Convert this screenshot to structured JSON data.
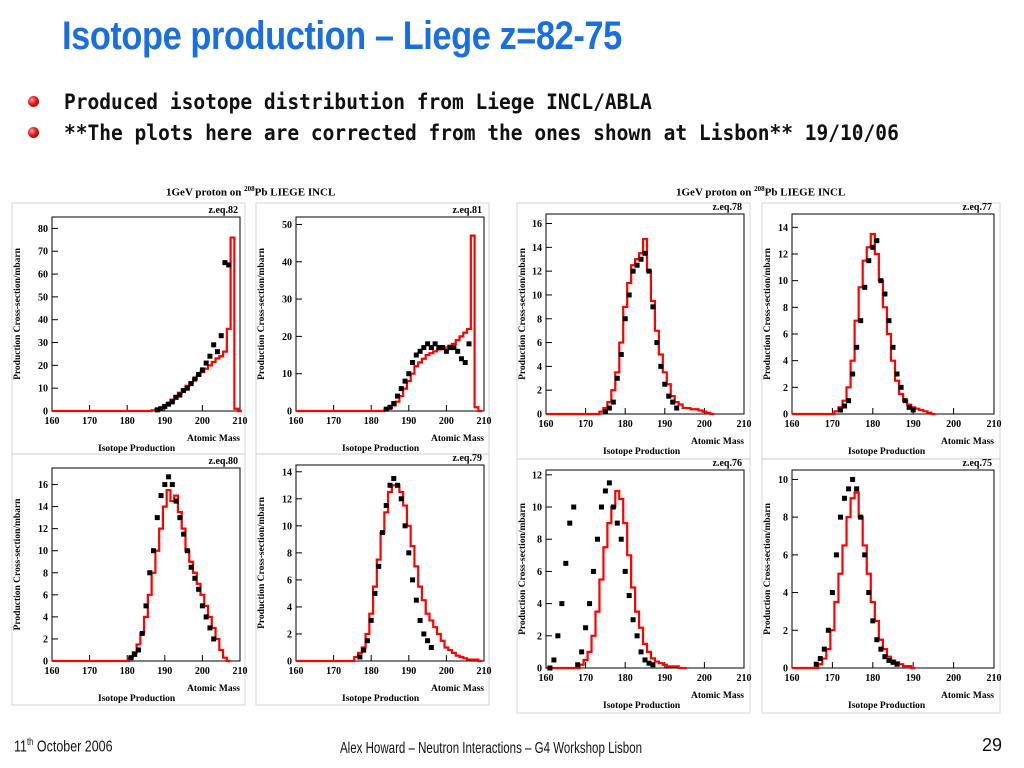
{
  "slide": {
    "title": "Isotope production – Liege z=82-75",
    "bullets": [
      "Produced isotope distribution from Liege INCL/ABLA",
      "**The plots here are corrected from the ones shown at Lisbon** 19/10/06"
    ],
    "panel_header_prefix": "1GeV proton on",
    "panel_header_mass": "208",
    "panel_header_suffix": "Pb LIEGE INCL",
    "footer_left_day": "11",
    "footer_left_sup": "th",
    "footer_left_rest": "October 2006",
    "footer_center": "Alex Howard – Neutron Interactions – G4 Workshop Lisbon",
    "page_number": "29",
    "colors": {
      "title": "#1a6fe0",
      "model_line": "#ff0000",
      "data_points": "#000000"
    }
  },
  "chart_data": [
    {
      "type": "line",
      "title": "z.eq.82",
      "xlabel": "Atomic Mass",
      "ylabel": "Production Cross-section/mbarn",
      "subtitle": "Isotope Production",
      "xlim": [
        160,
        210
      ],
      "ylim": [
        0,
        85
      ],
      "yticks": [
        0,
        10,
        20,
        30,
        40,
        50,
        60,
        70,
        80
      ],
      "xticks": [
        160,
        170,
        180,
        190,
        200,
        210
      ],
      "series": [
        {
          "style": "line",
          "x": [
            160,
            186,
            187,
            188,
            189,
            190,
            191,
            192,
            193,
            194,
            195,
            196,
            197,
            198,
            199,
            200,
            201,
            202,
            203,
            204,
            205,
            206,
            207,
            208,
            209,
            210
          ],
          "y": [
            0,
            0,
            0.3,
            0.8,
            1.5,
            2.5,
            3.5,
            5,
            6.5,
            8,
            9.5,
            11,
            12.5,
            14,
            15.5,
            17,
            18.5,
            20,
            21.5,
            23,
            24,
            26,
            36,
            76,
            1,
            0
          ]
        },
        {
          "style": "markers",
          "x": [
            188,
            189,
            190,
            191,
            192,
            193,
            194,
            195,
            196,
            197,
            198,
            199,
            200,
            201,
            202,
            203,
            204,
            205,
            206,
            207
          ],
          "y": [
            0.5,
            1,
            2,
            3,
            4,
            6,
            7,
            9,
            10,
            12,
            14,
            16,
            18,
            21,
            24,
            29,
            26,
            33,
            65,
            64
          ]
        }
      ]
    },
    {
      "type": "line",
      "title": "z.eq.81",
      "xlabel": "Atomic Mass",
      "ylabel": "Production Cross-section/mbarn",
      "subtitle": "Isotope Production",
      "xlim": [
        160,
        210
      ],
      "ylim": [
        0,
        52
      ],
      "yticks": [
        0,
        10,
        20,
        30,
        40,
        50
      ],
      "xticks": [
        160,
        170,
        180,
        190,
        200,
        210
      ],
      "series": [
        {
          "style": "line",
          "x": [
            160,
            183,
            184,
            185,
            186,
            187,
            188,
            189,
            190,
            191,
            192,
            193,
            194,
            195,
            196,
            197,
            198,
            199,
            200,
            201,
            202,
            203,
            204,
            205,
            206,
            207,
            208,
            209
          ],
          "y": [
            0,
            0,
            0.3,
            0.8,
            1.5,
            2.5,
            4,
            6,
            8,
            10,
            12,
            13,
            14,
            15,
            15.5,
            16,
            16.5,
            17,
            17,
            17.5,
            18,
            19,
            20,
            21,
            22,
            47,
            1,
            0
          ]
        },
        {
          "style": "markers",
          "x": [
            184,
            185,
            186,
            187,
            188,
            189,
            190,
            191,
            192,
            193,
            194,
            195,
            196,
            197,
            198,
            199,
            200,
            201,
            202,
            203,
            204,
            205,
            206
          ],
          "y": [
            0.5,
            1,
            2,
            4,
            6,
            8,
            10,
            13,
            15,
            16,
            17,
            18,
            17,
            18,
            17,
            17,
            16,
            17,
            17,
            16,
            14,
            13,
            18
          ]
        }
      ]
    },
    {
      "type": "line",
      "title": "z.eq.78",
      "xlabel": "Atomic Mass",
      "ylabel": "Production Cross-section/mbarn",
      "subtitle": "Isotope Production",
      "xlim": [
        160,
        210
      ],
      "ylim": [
        0,
        16.8
      ],
      "yticks": [
        0,
        2,
        4,
        6,
        8,
        10,
        12,
        14,
        16
      ],
      "xticks": [
        160,
        170,
        180,
        190,
        200,
        210
      ],
      "series": [
        {
          "style": "line",
          "x": [
            160,
            173,
            174,
            175,
            176,
            177,
            178,
            179,
            180,
            181,
            182,
            183,
            184,
            185,
            186,
            187,
            188,
            189,
            190,
            191,
            192,
            193,
            194,
            195,
            196,
            197,
            198,
            199,
            200,
            201,
            202
          ],
          "y": [
            0,
            0,
            0.2,
            0.5,
            1,
            2,
            3.5,
            6,
            9,
            11,
            12.5,
            13,
            13.5,
            14.7,
            12,
            9.5,
            7,
            5,
            3.5,
            2.5,
            1.5,
            1,
            0.8,
            0.5,
            0.5,
            0.4,
            0.4,
            0.3,
            0.2,
            0.1,
            0
          ]
        },
        {
          "style": "markers",
          "x": [
            175,
            176,
            177,
            178,
            179,
            180,
            181,
            182,
            183,
            184,
            185,
            186,
            187,
            188,
            189,
            190,
            191,
            192,
            193
          ],
          "y": [
            0.2,
            0.5,
            1,
            3,
            5,
            8,
            10,
            12,
            12.5,
            13,
            13.5,
            12,
            9,
            6,
            4,
            2.5,
            1.5,
            1,
            0.5
          ]
        }
      ]
    },
    {
      "type": "line",
      "title": "z.eq.77",
      "xlabel": "Atomic Mass",
      "ylabel": "Production Cross-section/mbarn",
      "subtitle": "Isotope Production",
      "xlim": [
        160,
        210
      ],
      "ylim": [
        0,
        15
      ],
      "yticks": [
        0,
        2,
        4,
        6,
        8,
        10,
        12,
        14
      ],
      "xticks": [
        160,
        170,
        180,
        190,
        200,
        210
      ],
      "series": [
        {
          "style": "line",
          "x": [
            160,
            170,
            171,
            172,
            173,
            174,
            175,
            176,
            177,
            178,
            179,
            180,
            181,
            182,
            183,
            184,
            185,
            186,
            187,
            188,
            189,
            190,
            191,
            192,
            193,
            194,
            195
          ],
          "y": [
            0,
            0,
            0.2,
            0.5,
            1,
            2,
            4,
            7,
            9.5,
            11.5,
            12.5,
            13.5,
            12,
            10,
            8,
            6,
            4,
            2.5,
            1.5,
            1,
            0.7,
            0.5,
            0.4,
            0.3,
            0.2,
            0.1,
            0
          ]
        },
        {
          "style": "markers",
          "x": [
            172,
            173,
            174,
            175,
            176,
            177,
            178,
            179,
            180,
            181,
            182,
            183,
            184,
            185,
            186,
            187,
            188,
            189,
            190
          ],
          "y": [
            0.3,
            0.6,
            1,
            3,
            5,
            7,
            9.5,
            11.5,
            12.5,
            13,
            10,
            9,
            7,
            5,
            3,
            2,
            1,
            0.5,
            0.3
          ]
        }
      ]
    },
    {
      "type": "line",
      "title": "z.eq.80",
      "xlabel": "Atomic Mass",
      "ylabel": "Production Cross-section/mbarn",
      "subtitle": "Isotope Production",
      "xlim": [
        160,
        210
      ],
      "ylim": [
        0,
        17.5
      ],
      "yticks": [
        0,
        2,
        4,
        6,
        8,
        10,
        12,
        14,
        16
      ],
      "xticks": [
        160,
        170,
        180,
        190,
        200,
        210
      ],
      "series": [
        {
          "style": "line",
          "x": [
            160,
            180,
            181,
            182,
            183,
            184,
            185,
            186,
            187,
            188,
            189,
            190,
            191,
            192,
            193,
            194,
            195,
            196,
            197,
            198,
            199,
            200,
            201,
            202,
            203,
            204,
            205,
            206,
            207
          ],
          "y": [
            0,
            0,
            0.3,
            0.8,
            1.5,
            2.5,
            4,
            6,
            8,
            10,
            12,
            14,
            15.5,
            14.5,
            15,
            13.5,
            12,
            10,
            9,
            8,
            7,
            6,
            5,
            4,
            3,
            2,
            1,
            0.3,
            0
          ]
        },
        {
          "style": "markers",
          "x": [
            181,
            182,
            183,
            184,
            185,
            186,
            187,
            188,
            189,
            190,
            191,
            192,
            193,
            194,
            195,
            196,
            197,
            198,
            199,
            200,
            201,
            202,
            203
          ],
          "y": [
            0.3,
            0.6,
            1,
            2.5,
            5,
            8,
            10,
            13,
            15,
            16,
            16.7,
            16,
            14.5,
            13,
            11.5,
            10,
            8.5,
            7.5,
            6.5,
            5,
            4,
            3,
            2
          ]
        }
      ]
    },
    {
      "type": "line",
      "title": "z.eq.79",
      "xlabel": "Atomic Mass",
      "ylabel": "Production Cross-section/mbarn",
      "subtitle": "Isotope Production",
      "xlim": [
        160,
        210
      ],
      "ylim": [
        0,
        14.5
      ],
      "yticks": [
        0,
        2,
        4,
        6,
        8,
        10,
        12,
        14
      ],
      "xticks": [
        160,
        170,
        180,
        190,
        200,
        210
      ],
      "series": [
        {
          "style": "line",
          "x": [
            160,
            175,
            176,
            177,
            178,
            179,
            180,
            181,
            182,
            183,
            184,
            185,
            186,
            187,
            188,
            189,
            190,
            191,
            192,
            193,
            194,
            195,
            196,
            197,
            198,
            199,
            200,
            201,
            202,
            203,
            204,
            205,
            206,
            207,
            208,
            209
          ],
          "y": [
            0,
            0,
            0.3,
            0.6,
            1,
            2,
            3.5,
            5.5,
            7.5,
            9.5,
            11,
            12.5,
            13,
            13,
            12.5,
            11.5,
            10,
            8.5,
            7,
            5.5,
            4.5,
            3.5,
            3,
            2.5,
            2,
            1.5,
            1,
            0.8,
            0.6,
            0.4,
            0.3,
            0.2,
            0.1,
            0.1,
            0.1,
            0
          ]
        },
        {
          "style": "markers",
          "x": [
            177,
            178,
            179,
            180,
            181,
            182,
            183,
            184,
            185,
            186,
            187,
            188,
            189,
            190,
            191,
            192,
            193,
            194,
            195,
            196
          ],
          "y": [
            0.3,
            0.8,
            1.5,
            3,
            5,
            7,
            9.5,
            11.5,
            13,
            13.5,
            13,
            12,
            10,
            8,
            6,
            4.5,
            3,
            2,
            1.5,
            1
          ]
        }
      ]
    },
    {
      "type": "line",
      "title": "z.eq.76",
      "xlabel": "Atomic Mass",
      "ylabel": "Production Cross-section/mbarn",
      "subtitle": "Isotope Production",
      "xlim": [
        160,
        210
      ],
      "ylim": [
        0,
        12.3
      ],
      "yticks": [
        0,
        2,
        4,
        6,
        8,
        10,
        12
      ],
      "xticks": [
        160,
        170,
        180,
        190,
        200,
        210
      ],
      "series": [
        {
          "style": "line",
          "x": [
            160,
            168,
            169,
            170,
            171,
            172,
            173,
            174,
            175,
            176,
            177,
            178,
            179,
            180,
            181,
            182,
            183,
            184,
            185,
            186,
            187,
            188,
            189,
            190,
            191,
            192,
            193,
            194,
            195
          ],
          "y": [
            0,
            0,
            0.2,
            0.5,
            1,
            2,
            3.5,
            5.5,
            7.5,
            9,
            10,
            11,
            10.5,
            9,
            7,
            5,
            3.5,
            2.5,
            1.5,
            1,
            0.6,
            0.4,
            0.3,
            0.2,
            0.1,
            0.1,
            0.1,
            0,
            0
          ]
        },
        {
          "style": "markers",
          "x": [
            161,
            162,
            163,
            164,
            165,
            166,
            167,
            168,
            169,
            170,
            171,
            172,
            173,
            174,
            175,
            176,
            177,
            178,
            179,
            180,
            181,
            182,
            183,
            184,
            185,
            186,
            187
          ],
          "y": [
            0,
            0.5,
            2,
            4,
            6.5,
            9,
            10,
            0.2,
            1,
            2.5,
            4,
            6,
            8,
            10,
            11,
            11.5,
            10,
            9,
            8,
            6,
            4.5,
            3,
            2,
            1,
            0.5,
            0.3,
            0.2
          ]
        }
      ]
    },
    {
      "type": "line",
      "title": "z.eq.75",
      "xlabel": "Atomic Mass",
      "ylabel": "Production Cross-section/mbarn",
      "subtitle": "Isotope Production",
      "xlim": [
        160,
        210
      ],
      "ylim": [
        0,
        10.5
      ],
      "yticks": [
        0,
        2,
        4,
        6,
        8,
        10
      ],
      "xticks": [
        160,
        170,
        180,
        190,
        200,
        210
      ],
      "series": [
        {
          "style": "line",
          "x": [
            160,
            166,
            167,
            168,
            169,
            170,
            171,
            172,
            173,
            174,
            175,
            176,
            177,
            178,
            179,
            180,
            181,
            182,
            183,
            184,
            185,
            186,
            187,
            188,
            189,
            190
          ],
          "y": [
            0,
            0,
            0.2,
            0.5,
            1,
            2,
            3.5,
            5,
            6.5,
            8,
            9,
            9.3,
            8,
            6.5,
            5,
            3.5,
            2.5,
            1.5,
            1,
            0.6,
            0.4,
            0.3,
            0.2,
            0.1,
            0.1,
            0
          ]
        },
        {
          "style": "markers",
          "x": [
            166,
            167,
            168,
            169,
            170,
            171,
            172,
            173,
            174,
            175,
            176,
            177,
            178,
            179,
            180,
            181,
            182,
            183,
            184,
            185,
            186
          ],
          "y": [
            0.2,
            0.5,
            1,
            2,
            4,
            6,
            8,
            9,
            9.5,
            10,
            9.5,
            8,
            6,
            4,
            2.5,
            1.5,
            1,
            0.6,
            0.4,
            0.3,
            0.2
          ]
        }
      ]
    }
  ]
}
